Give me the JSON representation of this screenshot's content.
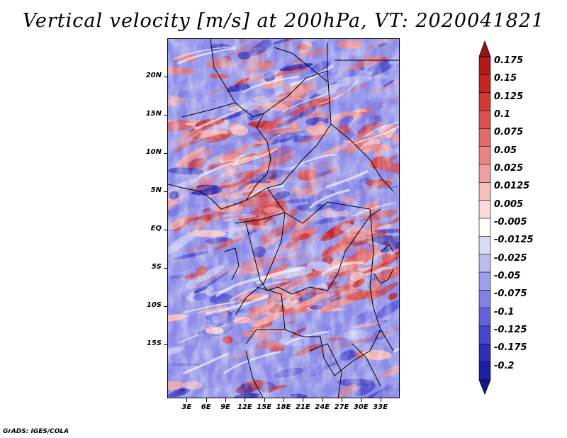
{
  "title": "Vertical velocity [m/s] at 200hPa, VT: 2020041821",
  "footer": "GrADS: IGES/COLA",
  "map": {
    "lon_range": [
      0,
      36
    ],
    "lat_range": [
      -22,
      25
    ],
    "y_ticks": [
      {
        "lat": 20,
        "label": "20N"
      },
      {
        "lat": 15,
        "label": "15N"
      },
      {
        "lat": 10,
        "label": "10N"
      },
      {
        "lat": 5,
        "label": "5N"
      },
      {
        "lat": 0,
        "label": "EQ"
      },
      {
        "lat": -5,
        "label": "5S"
      },
      {
        "lat": -10,
        "label": "10S"
      },
      {
        "lat": -15,
        "label": "15S"
      }
    ],
    "x_ticks": [
      {
        "lon": 3,
        "label": "3E"
      },
      {
        "lon": 6,
        "label": "6E"
      },
      {
        "lon": 9,
        "label": "9E"
      },
      {
        "lon": 12,
        "label": "12E"
      },
      {
        "lon": 15,
        "label": "15E"
      },
      {
        "lon": 18,
        "label": "18E"
      },
      {
        "lon": 21,
        "label": "21E"
      },
      {
        "lon": 24,
        "label": "24E"
      },
      {
        "lon": 27,
        "label": "27E"
      },
      {
        "lon": 30,
        "label": "30E"
      },
      {
        "lon": 33,
        "label": "33E"
      }
    ]
  },
  "colorbar": {
    "levels": [
      {
        "label": "0.175",
        "color": "#b01a1a"
      },
      {
        "label": "0.15",
        "color": "#c42424"
      },
      {
        "label": "0.125",
        "color": "#d23a3a"
      },
      {
        "label": "0.1",
        "color": "#dc5050"
      },
      {
        "label": "0.075",
        "color": "#e46a6a"
      },
      {
        "label": "0.05",
        "color": "#ea8484"
      },
      {
        "label": "0.025",
        "color": "#f0a0a0"
      },
      {
        "label": "0.0125",
        "color": "#f6bebe"
      },
      {
        "label": "0.005",
        "color": "#fadada"
      },
      {
        "label": "-0.005",
        "color": "#ffffff"
      },
      {
        "label": "-0.0125",
        "color": "#dadaf6"
      },
      {
        "label": "-0.025",
        "color": "#bcbcf2"
      },
      {
        "label": "-0.05",
        "color": "#9e9eee"
      },
      {
        "label": "-0.075",
        "color": "#8080e6"
      },
      {
        "label": "-0.1",
        "color": "#6262dc"
      },
      {
        "label": "-0.125",
        "color": "#4646cc"
      },
      {
        "label": "-0.175",
        "color": "#2e2eb8"
      },
      {
        "label": "-0.2",
        "color": "#1e1ea0"
      }
    ],
    "top_color": "#9a1414",
    "bottom_color": "#16168c"
  }
}
